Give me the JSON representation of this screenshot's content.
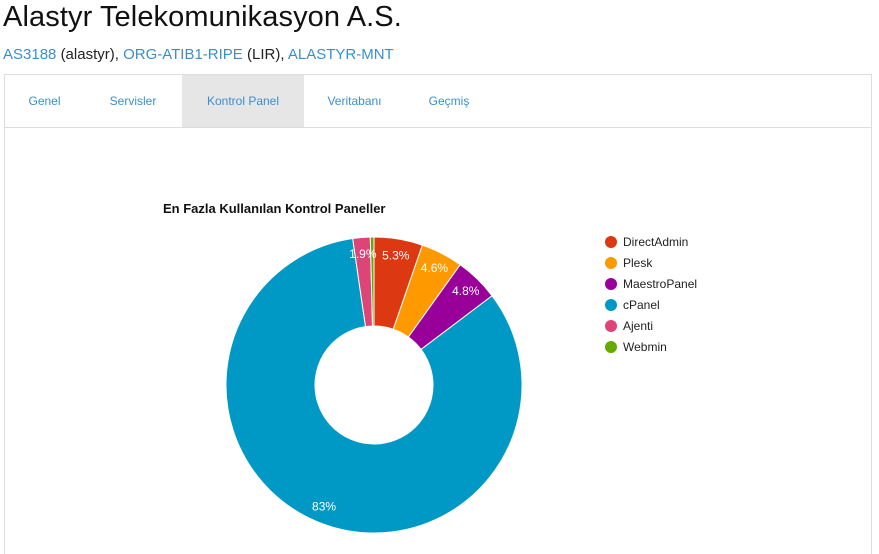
{
  "header": {
    "title": "Alastyr Telekomunikasyon A.S.",
    "asn": "AS3188",
    "asn_handle": "(alastyr),",
    "org": "ORG-ATIB1-RIPE",
    "org_type": "(LIR),",
    "mnt": "ALASTYR-MNT"
  },
  "tabs": [
    {
      "label": "Genel",
      "active": false
    },
    {
      "label": "Servisler",
      "active": false
    },
    {
      "label": "Kontrol Panel",
      "active": true
    },
    {
      "label": "Veritabanı",
      "active": false
    },
    {
      "label": "Geçmiş",
      "active": false
    }
  ],
  "chart_data": {
    "type": "pie",
    "title": "En Fazla Kullanılan Kontrol Paneller",
    "legend_position": "right",
    "labels": [
      "DirectAdmin",
      "Plesk",
      "MaestroPanel",
      "cPanel",
      "Ajenti",
      "Webmin"
    ],
    "values": [
      5.3,
      4.6,
      4.8,
      83,
      1.9,
      0.4
    ],
    "slice_labels": [
      "5.3%",
      "4.6%",
      "4.8%",
      "83%",
      "1.9%",
      ""
    ],
    "colors": [
      "#dc3912",
      "#ff9900",
      "#990099",
      "#0099c6",
      "#dd4477",
      "#66aa00"
    ]
  }
}
